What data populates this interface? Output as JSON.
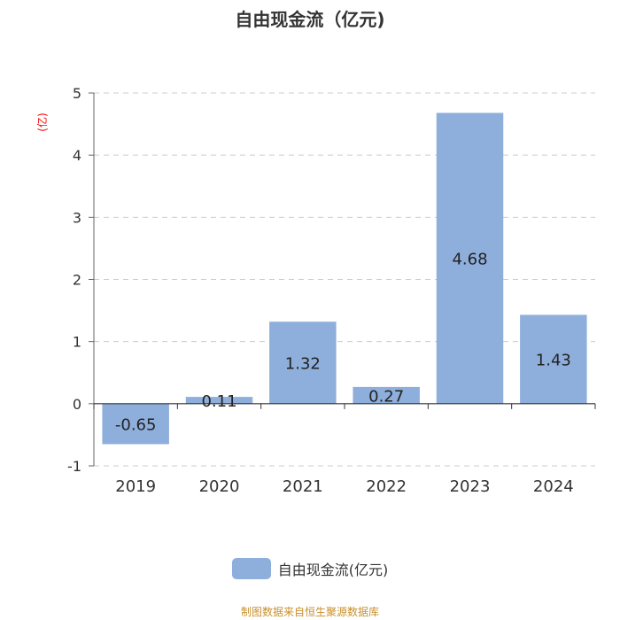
{
  "chart_data": {
    "type": "bar",
    "title": "自由现金流（亿元)",
    "ylabel": "(亿)",
    "categories": [
      "2019",
      "2020",
      "2021",
      "2022",
      "2023",
      "2024"
    ],
    "series": [
      {
        "name": "自由现金流(亿元)",
        "values": [
          -0.65,
          0.11,
          1.32,
          0.27,
          4.68,
          1.43
        ]
      }
    ],
    "data_labels": [
      "-0.65",
      "0.11",
      "1.32",
      "0.27",
      "4.68",
      "1.43"
    ],
    "ylim": [
      -1,
      5
    ],
    "yticks": [
      -1,
      0,
      1,
      2,
      3,
      4,
      5
    ],
    "grid": true,
    "legend_position": "bottom",
    "colors": {
      "bar": "#8eaedb",
      "ylabel": "#ff0000",
      "source": "#c8902f"
    }
  },
  "source_note": "制图数据来自恒生聚源数据库"
}
